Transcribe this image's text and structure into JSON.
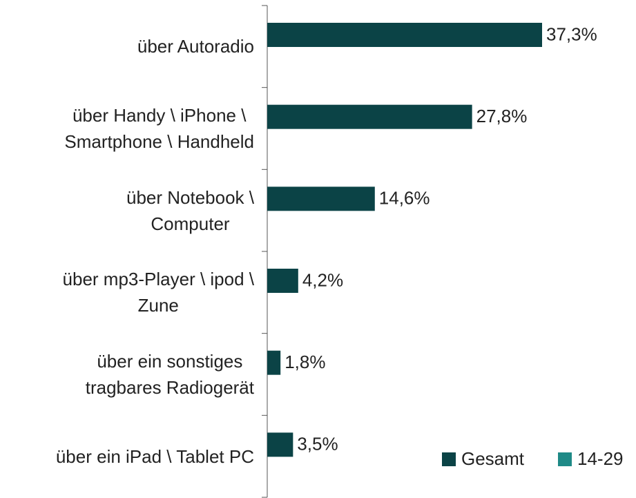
{
  "chart_data": {
    "type": "bar",
    "orientation": "horizontal",
    "categories": [
      "über Autoradio",
      "über Handy \\ iPhone \\\nSmartphone \\ Handheld",
      "über Notebook \\\nComputer",
      "über mp3-Player \\ ipod \\\nZune",
      "über ein sonstiges\ntragbares Radiogerät",
      "über ein iPad \\ Tablet PC"
    ],
    "series": [
      {
        "name": "Gesamt",
        "color": "#0b4346",
        "values": [
          37.3,
          27.8,
          14.6,
          4.2,
          1.8,
          3.5
        ],
        "value_labels": [
          "37,3%",
          "27,8%",
          "14,6%",
          "4,2%",
          "1,8%",
          "3,5%"
        ]
      },
      {
        "name": "14-29",
        "color": "#1f8a87",
        "values": [
          null,
          null,
          null,
          null,
          null,
          null
        ]
      }
    ],
    "xlim": [
      0,
      40
    ],
    "legend": "bottom-right"
  }
}
